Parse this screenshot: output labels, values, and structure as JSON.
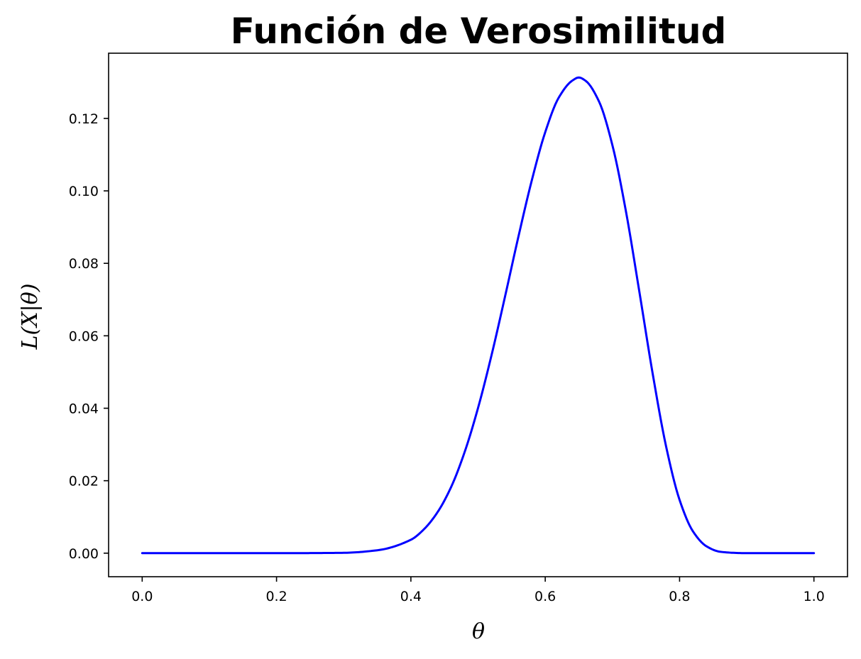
{
  "chart_data": {
    "type": "line",
    "title": "Función de Verosimilitud",
    "xlabel": "θ",
    "ylabel": "L(X|θ)",
    "xlim": [
      -0.05,
      1.05
    ],
    "ylim": [
      -0.0065,
      0.138
    ],
    "grid": false,
    "x_ticks": [
      {
        "value": 0.0,
        "label": "0.0"
      },
      {
        "value": 0.2,
        "label": "0.2"
      },
      {
        "value": 0.4,
        "label": "0.4"
      },
      {
        "value": 0.6,
        "label": "0.6"
      },
      {
        "value": 0.8,
        "label": "0.8"
      },
      {
        "value": 1.0,
        "label": "1.0"
      }
    ],
    "y_ticks": [
      {
        "value": 0.0,
        "label": "0.00"
      },
      {
        "value": 0.02,
        "label": "0.02"
      },
      {
        "value": 0.04,
        "label": "0.04"
      },
      {
        "value": 0.06,
        "label": "0.06"
      },
      {
        "value": 0.08,
        "label": "0.08"
      },
      {
        "value": 0.1,
        "label": "0.10"
      },
      {
        "value": 0.12,
        "label": "0.12"
      }
    ],
    "series": [
      {
        "color": "#0000ff",
        "x": [
          0.0,
          0.1,
          0.2,
          0.3,
          0.35,
          0.4,
          0.42,
          0.44,
          0.46,
          0.48,
          0.5,
          0.52,
          0.54,
          0.56,
          0.58,
          0.6,
          0.62,
          0.64,
          0.65,
          0.66,
          0.68,
          0.7,
          0.72,
          0.74,
          0.76,
          0.78,
          0.8,
          0.82,
          0.84,
          0.86,
          0.88,
          0.9,
          0.95,
          1.0
        ],
        "y": [
          0.0,
          0.0,
          0.0,
          0.0001,
          0.0008,
          0.0037,
          0.0067,
          0.0114,
          0.0183,
          0.0279,
          0.0401,
          0.0546,
          0.0707,
          0.0873,
          0.1029,
          0.1162,
          0.1257,
          0.1304,
          0.1313,
          0.1304,
          0.1247,
          0.1126,
          0.0945,
          0.0723,
          0.0495,
          0.0294,
          0.0147,
          0.006,
          0.0019,
          0.0004,
          0.0001,
          0.0,
          0.0,
          0.0
        ]
      }
    ]
  }
}
